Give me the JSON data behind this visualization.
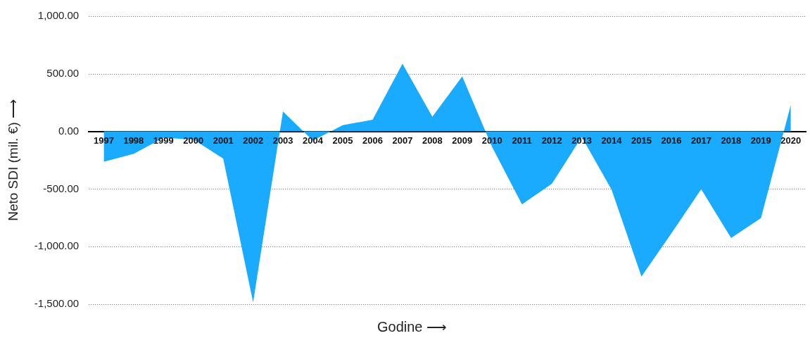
{
  "chart_data": {
    "type": "area",
    "xlabel": "Godine ⟶",
    "ylabel": "Neto SDI (mil. €) ⟶",
    "categories": [
      "1997",
      "1998",
      "1999",
      "2000",
      "2001",
      "2002",
      "2003",
      "2004",
      "2005",
      "2006",
      "2007",
      "2008",
      "2009",
      "2010",
      "2011",
      "2012",
      "2013",
      "2014",
      "2015",
      "2016",
      "2017",
      "2018",
      "2019",
      "2020"
    ],
    "series": [
      {
        "color": "#1aabff",
        "values": [
          -264,
          -195,
          -56,
          -70,
          -237,
          -1484,
          173,
          -81,
          54,
          102,
          588,
          127,
          477,
          -135,
          -633,
          -455,
          -49,
          -506,
          -1260,
          -885,
          -502,
          -926,
          -752,
          232
        ]
      }
    ],
    "ylim": [
      -1500,
      1000
    ],
    "yticks": [
      {
        "value": 1000,
        "label": "1,000.00"
      },
      {
        "value": 500,
        "label": "500.00"
      },
      {
        "value": 0,
        "label": "0.00"
      },
      {
        "value": -500,
        "label": "-500.00"
      },
      {
        "value": -1000,
        "label": "-1,000.00"
      },
      {
        "value": -1500,
        "label": "-1,500.00"
      }
    ],
    "grid": "y",
    "legend": false
  }
}
